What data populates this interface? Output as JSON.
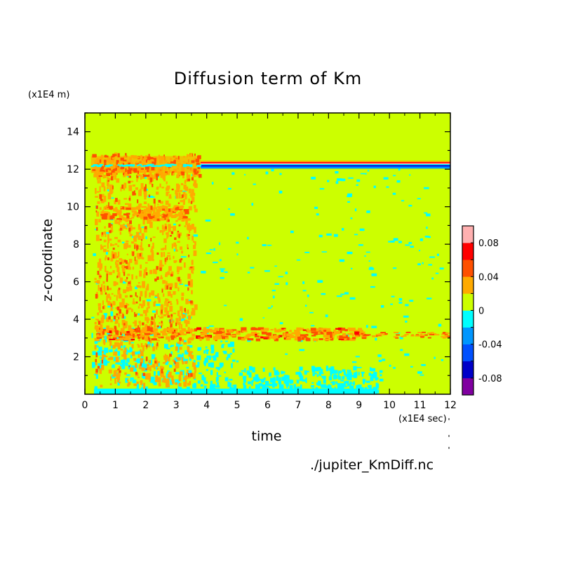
{
  "chart_data": {
    "type": "heatmap",
    "title": "Diffusion term of Km",
    "xlabel": "time",
    "ylabel": "z-coordinate",
    "x_unit": "(x1E4 sec)",
    "y_unit": "(x1E4 m)",
    "xlim": [
      0,
      12
    ],
    "ylim": [
      0,
      15
    ],
    "x_ticks": [
      "0",
      "1",
      "2",
      "3",
      "4",
      "5",
      "6",
      "7",
      "8",
      "9",
      "10",
      "11",
      "12"
    ],
    "y_ticks": [
      "2",
      "4",
      "6",
      "8",
      "10",
      "12",
      "14"
    ],
    "colorbar": {
      "levels": [
        -0.1,
        -0.08,
        -0.06,
        -0.04,
        -0.02,
        0,
        0.02,
        0.04,
        0.06,
        0.08,
        0.1
      ],
      "tick_labels": [
        "0.08",
        "0.04",
        "0",
        "-0.04",
        "-0.08"
      ],
      "colors": [
        "#8000a0",
        "#0000c8",
        "#0050ff",
        "#0096ff",
        "#00ffff",
        "#ccff00",
        "#ffaa00",
        "#ff5000",
        "#ff0000",
        "#ffb0b0"
      ]
    },
    "features": [
      {
        "z_range": [
          12.0,
          12.4
        ],
        "x_range": [
          3.8,
          12
        ],
        "description": "strong positive/negative band"
      },
      {
        "z_range": [
          2.9,
          3.5
        ],
        "x_range": [
          0.3,
          9
        ],
        "description": "positive band"
      },
      {
        "z_range": [
          0,
          2.5
        ],
        "x_range": [
          0.2,
          9.5
        ],
        "description": "negative streaks"
      }
    ],
    "background_value": 0
  },
  "source_file": "./jupiter_KmDiff.nc"
}
